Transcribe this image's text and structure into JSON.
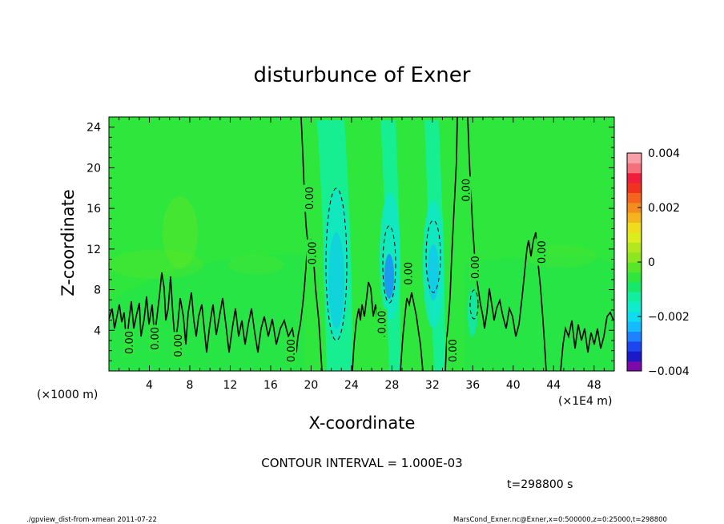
{
  "chart_data": {
    "type": "contour",
    "title": "disturbunce of Exner",
    "xlabel": "X-coordinate",
    "ylabel": "Z-coordinate",
    "x_unit_label": "(×1E4 m)",
    "z_unit_label": "(×1000 m)",
    "xlim": [
      0,
      50
    ],
    "ylim": [
      0,
      25
    ],
    "x_ticks": [
      4,
      8,
      12,
      16,
      20,
      24,
      28,
      32,
      36,
      40,
      44,
      48
    ],
    "x_tick_labels": [
      "4",
      "8",
      "12",
      "16",
      "20",
      "24",
      "28",
      "32",
      "36",
      "40",
      "44",
      "48"
    ],
    "y_ticks": [
      4,
      8,
      12,
      16,
      20,
      24
    ],
    "y_tick_labels": [
      "4",
      "8",
      "12",
      "16",
      "20",
      "24"
    ],
    "colorbar": {
      "min": -0.004,
      "max": 0.004,
      "tick_labels": [
        "0.004",
        "0.002",
        "0",
        "−0.002",
        "−0.004"
      ],
      "colors": [
        "#7d0aa8",
        "#1a1ac8",
        "#1e46f0",
        "#1e82ff",
        "#12bcff",
        "#10dcf0",
        "#10eccb",
        "#12eea0",
        "#18e86a",
        "#2ee63c",
        "#5ae628",
        "#8ee620",
        "#b4e81e",
        "#dcec1e",
        "#f0dc1e",
        "#f5b41e",
        "#f58c1e",
        "#f5641e",
        "#f0321e",
        "#f01e3c",
        "#f5707a",
        "#f7a0a8"
      ],
      "colors_order": "bottom-to-top"
    },
    "contour_interval_text": "CONTOUR INTERVAL = 1.000E-03",
    "zero_contour_label": "0.00",
    "negative_contour_centers_x": [
      22.5,
      27.8,
      32.0,
      35.5
    ],
    "time_label": "t=298800 s"
  },
  "footer": {
    "left": "./gpview_dist-from-xmean   2011-07-22",
    "right": "MarsCond_Exner.nc@Exner,x=0:500000,z=0:25000,t=298800"
  }
}
